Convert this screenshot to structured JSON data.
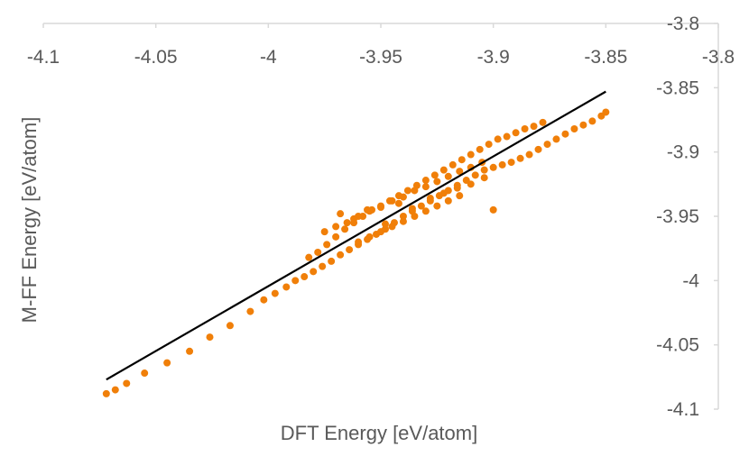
{
  "chart_data": {
    "type": "scatter",
    "title": "",
    "xlabel": "DFT Energy [eV/atom]",
    "ylabel": "M-FF Energy [eV/atom]",
    "xlim": [
      -4.1,
      -3.8
    ],
    "ylim": [
      -4.1,
      -3.8
    ],
    "x_ticks": [
      "-4.1",
      "-4.05",
      "-4",
      "-3.95",
      "-3.9",
      "-3.85",
      "-3.8"
    ],
    "y_ticks": [
      "-3.8",
      "-3.85",
      "-3.9",
      "-3.95",
      "-4",
      "-4.05",
      "-4.1"
    ],
    "x_tick_values": [
      -4.1,
      -4.05,
      -4.0,
      -3.95,
      -3.9,
      -3.85,
      -3.8
    ],
    "y_tick_values": [
      -3.8,
      -3.85,
      -3.9,
      -3.95,
      -4.0,
      -4.05,
      -4.1
    ],
    "x_axis_position": "top",
    "y_axis_position": "right",
    "grid": false,
    "legend": "none",
    "colors": {
      "points": "#F07F09",
      "fit_line": "#000000",
      "axis": "#D9D9D9",
      "text": "#595959"
    },
    "series": [
      {
        "type": "scatter",
        "x": [
          -4.072,
          -4.068,
          -4.063,
          -4.055,
          -4.045,
          -4.035,
          -4.026,
          -4.017,
          -4.008,
          -4.002,
          -3.997,
          -3.992,
          -3.988,
          -3.984,
          -3.98,
          -3.976,
          -3.972,
          -3.968,
          -3.964,
          -3.96,
          -3.956,
          -3.952,
          -3.948,
          -3.944,
          -3.94,
          -3.936,
          -3.932,
          -3.928,
          -3.924,
          -3.92,
          -3.916,
          -3.912,
          -3.908,
          -3.904,
          -3.9,
          -3.896,
          -3.892,
          -3.888,
          -3.884,
          -3.88,
          -3.876,
          -3.872,
          -3.868,
          -3.864,
          -3.86,
          -3.856,
          -3.852,
          -3.85,
          -3.982,
          -3.978,
          -3.974,
          -3.97,
          -3.966,
          -3.962,
          -3.958,
          -3.954,
          -3.95,
          -3.946,
          -3.942,
          -3.938,
          -3.934,
          -3.93,
          -3.926,
          -3.922,
          -3.918,
          -3.914,
          -3.91,
          -3.906,
          -3.902,
          -3.898,
          -3.894,
          -3.89,
          -3.886,
          -3.882,
          -3.878,
          -3.975,
          -3.97,
          -3.965,
          -3.96,
          -3.955,
          -3.95,
          -3.945,
          -3.94,
          -3.935,
          -3.93,
          -3.925,
          -3.92,
          -3.915,
          -3.91,
          -3.905,
          -3.96,
          -3.955,
          -3.95,
          -3.945,
          -3.94,
          -3.935,
          -3.93,
          -3.925,
          -3.92,
          -3.915,
          -3.968,
          -3.962,
          -3.956,
          -3.948,
          -3.942,
          -3.936,
          -3.928,
          -3.922,
          -3.916,
          -3.91,
          -3.904,
          -3.9
        ],
        "y": [
          -4.088,
          -4.085,
          -4.08,
          -4.072,
          -4.064,
          -4.055,
          -4.044,
          -4.035,
          -4.024,
          -4.015,
          -4.01,
          -4.005,
          -4.0,
          -3.997,
          -3.993,
          -3.989,
          -3.985,
          -3.98,
          -3.976,
          -3.972,
          -3.968,
          -3.964,
          -3.96,
          -3.955,
          -3.95,
          -3.946,
          -3.942,
          -3.938,
          -3.934,
          -3.93,
          -3.926,
          -3.922,
          -3.918,
          -3.914,
          -3.912,
          -3.91,
          -3.908,
          -3.905,
          -3.902,
          -3.898,
          -3.894,
          -3.89,
          -3.886,
          -3.882,
          -3.879,
          -3.876,
          -3.872,
          -3.869,
          -3.982,
          -3.978,
          -3.972,
          -3.966,
          -3.96,
          -3.955,
          -3.95,
          -3.945,
          -3.942,
          -3.938,
          -3.934,
          -3.93,
          -3.926,
          -3.922,
          -3.918,
          -3.914,
          -3.91,
          -3.906,
          -3.902,
          -3.898,
          -3.894,
          -3.89,
          -3.888,
          -3.885,
          -3.882,
          -3.88,
          -3.877,
          -3.962,
          -3.958,
          -3.955,
          -3.95,
          -3.946,
          -3.943,
          -3.938,
          -3.935,
          -3.93,
          -3.927,
          -3.923,
          -3.919,
          -3.915,
          -3.912,
          -3.908,
          -3.97,
          -3.966,
          -3.962,
          -3.958,
          -3.954,
          -3.95,
          -3.946,
          -3.942,
          -3.938,
          -3.934,
          -3.948,
          -3.952,
          -3.945,
          -3.956,
          -3.94,
          -3.944,
          -3.936,
          -3.932,
          -3.928,
          -3.925,
          -3.92,
          -3.945
        ]
      },
      {
        "type": "line",
        "x": [
          -4.072,
          -3.85
        ],
        "y": [
          -4.077,
          -3.853
        ]
      }
    ]
  }
}
